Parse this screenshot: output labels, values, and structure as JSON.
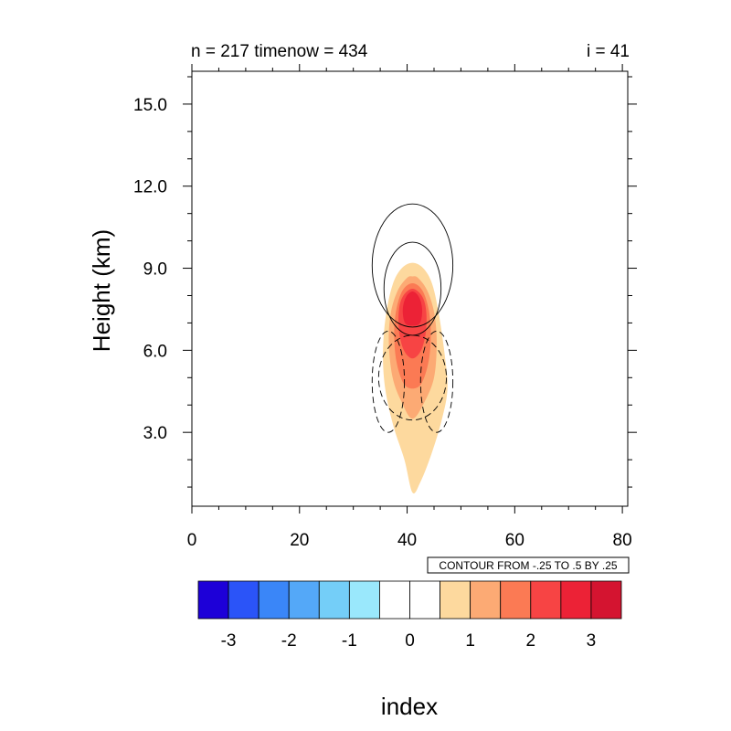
{
  "chart_data": {
    "type": "heatmap",
    "title_left": "n = 217 timenow = 434",
    "title_right": "i = 41",
    "xlabel": "index",
    "ylabel": "Height (km)",
    "xlim": [
      0,
      81
    ],
    "ylim": [
      0.3,
      16.2
    ],
    "x_ticks": [
      0,
      20,
      40,
      60,
      80
    ],
    "x_tick_labels": [
      "0",
      "20",
      "40",
      "60",
      "80"
    ],
    "y_ticks": [
      3,
      6,
      9,
      12,
      15
    ],
    "y_tick_labels": [
      "3.0",
      "6.0",
      "9.0",
      "12.0",
      "15.0"
    ],
    "contour_info": "CONTOUR FROM -.25 TO .5 BY .25",
    "colorbar": {
      "colors": [
        "#1d00d8",
        "#2b54f8",
        "#3a86f8",
        "#54a8f8",
        "#74cef8",
        "#9ae8fc",
        "#ffffff",
        "#ffffff",
        "#fdd99e",
        "#fcaa74",
        "#fb7a54",
        "#f74444",
        "#ec2236",
        "#d41430"
      ],
      "tick_labels": [
        "-3",
        "-2",
        "-1",
        "0",
        "1",
        "2",
        "3"
      ]
    },
    "filled_regions": [
      {
        "level": "0.5 to 1",
        "color": "#fdd99e",
        "points": [
          [
            41,
            0.8
          ],
          [
            39.5,
            2.0
          ],
          [
            37.5,
            3.2
          ],
          [
            36,
            4.5
          ],
          [
            35.5,
            5.8
          ],
          [
            36,
            7.2
          ],
          [
            37.3,
            8.4
          ],
          [
            39,
            9.0
          ],
          [
            41,
            9.2
          ],
          [
            43,
            9.0
          ],
          [
            44.7,
            8.4
          ],
          [
            46,
            7.2
          ],
          [
            47,
            5.8
          ],
          [
            47.5,
            4.6
          ],
          [
            46.5,
            3.5
          ],
          [
            44.5,
            2.2
          ],
          [
            42.5,
            1.2
          ]
        ]
      },
      {
        "level": "1 to 1.5",
        "color": "#fcaa74",
        "points": [
          [
            41,
            3.5
          ],
          [
            39,
            4.1
          ],
          [
            37.3,
            5.0
          ],
          [
            36.6,
            6.3
          ],
          [
            37,
            7.4
          ],
          [
            38.3,
            8.2
          ],
          [
            40,
            8.65
          ],
          [
            41,
            8.7
          ],
          [
            42,
            8.65
          ],
          [
            43.7,
            8.2
          ],
          [
            45,
            7.4
          ],
          [
            45.5,
            6.3
          ],
          [
            45,
            5.0
          ],
          [
            43.2,
            4.1
          ]
        ]
      },
      {
        "level": "1.5 to 2",
        "color": "#fb7a54",
        "points": [
          [
            41,
            4.6
          ],
          [
            39.3,
            4.8
          ],
          [
            38,
            5.6
          ],
          [
            37.6,
            6.6
          ],
          [
            38,
            7.5
          ],
          [
            39.2,
            8.2
          ],
          [
            41,
            8.45
          ],
          [
            42.8,
            8.2
          ],
          [
            44,
            7.5
          ],
          [
            44.4,
            6.6
          ],
          [
            44,
            5.6
          ],
          [
            42.7,
            4.8
          ]
        ]
      },
      {
        "level": "2 to 2.5",
        "color": "#f74444",
        "points": [
          [
            41,
            5.7
          ],
          [
            39.4,
            6.0
          ],
          [
            38.5,
            6.7
          ],
          [
            38.5,
            7.5
          ],
          [
            39.3,
            8.0
          ],
          [
            41,
            8.25
          ],
          [
            42.7,
            8.0
          ],
          [
            43.5,
            7.5
          ],
          [
            43.5,
            6.7
          ],
          [
            42.6,
            6.0
          ]
        ]
      },
      {
        "level": "2.5 to 3",
        "color": "#ec2236",
        "points": [
          [
            41,
            6.9
          ],
          [
            39.6,
            7.0
          ],
          [
            39.2,
            7.5
          ],
          [
            39.8,
            7.95
          ],
          [
            41,
            8.15
          ],
          [
            42.2,
            7.95
          ],
          [
            42.8,
            7.5
          ],
          [
            42.4,
            7.0
          ]
        ]
      }
    ],
    "contour_lines": [
      {
        "value": 0.5,
        "style": "solid",
        "center": [
          41,
          9.1
        ],
        "rx": 7.5,
        "ry": 2.25
      },
      {
        "value": 0.25,
        "style": "solid",
        "center": [
          41,
          8.25
        ],
        "rx": 5.3,
        "ry": 1.7
      },
      {
        "value": -0.25,
        "style": "dashed",
        "center": [
          36.5,
          4.85
        ],
        "rx": 3.0,
        "ry": 1.85
      },
      {
        "value": -0.25,
        "style": "dashed",
        "center": [
          45.5,
          4.85
        ],
        "rx": 3.0,
        "ry": 1.85
      },
      {
        "value": -0.25,
        "style": "dashed",
        "center": [
          41,
          5.0
        ],
        "rx": 6.3,
        "ry": 1.55
      }
    ]
  }
}
